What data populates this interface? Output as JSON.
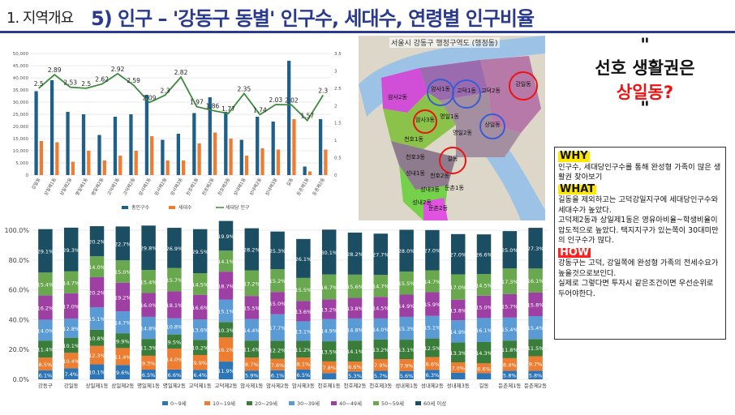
{
  "header": {
    "section": "1. 지역개요",
    "title": "5) 인구 – '강동구 동별' 인구수, 세대수, 연령별 인구비율"
  },
  "map": {
    "title": "서울시 강동구 행정구역도 (행정동)",
    "labels": [
      "강일동",
      "암사1동",
      "고덕1동",
      "고덕2동",
      "암사2동",
      "암사3동",
      "명일1동",
      "상일동",
      "명일2동",
      "천호1동",
      "천호3동",
      "길동",
      "성내1동",
      "천호2동",
      "성내3동",
      "성내2동",
      "둔촌1동",
      "둔촌2동"
    ]
  },
  "callout": {
    "quote_open": "\"",
    "line1": "선호 생활권은",
    "line2": "상일동?",
    "quote_close": "\""
  },
  "box": {
    "why_head": "WHY",
    "why_text": "인구수, 세대당인구수를 통해 완성형 가족이 많은 생활권 찾아보기",
    "what_head": "WHAT",
    "what_text1": "길동을 제외하고는 고덕강일지구에 세대당인구수와 세대수가 높았다.",
    "what_text2": "고덕제2동과 상일제1동은 영유아비율~학생비율이 압도적으로 높았다. 택지지구가 있는쪽이 30대미만의 인구수가 많다.",
    "how_head": "HOW",
    "how_text1": "강동구는 고덕, 강일쪽에 완성형 가족의 전세수요가 높을것으로보인다.",
    "how_text2": "실제로 그렇다면 투자시 같은조건이면 우선순위로 두어야한다."
  },
  "chart_data": [
    {
      "type": "bar",
      "categories": [
        "강일동",
        "상일제1동",
        "상일제2동",
        "명일제1동",
        "명일제2동",
        "고덕제1동",
        "고덕제2동",
        "암사제1동",
        "암사제2동",
        "암사제3동",
        "천호제1동",
        "천호제2동",
        "천호제3동",
        "성내제1동",
        "성내제2동",
        "성내제3동",
        "길동",
        "둔촌제1동",
        "둔촌제2동"
      ],
      "series": [
        {
          "name": "총인구수",
          "axis": "left",
          "color": "#1f5f8b",
          "values": [
            34500,
            39000,
            26000,
            25000,
            16500,
            24000,
            25000,
            33000,
            14500,
            17000,
            25500,
            32000,
            26000,
            14500,
            24000,
            22000,
            47000,
            3500,
            23000
          ]
        },
        {
          "name": "세대수",
          "axis": "left",
          "color": "#ed7d31",
          "values": [
            14000,
            13500,
            5500,
            10000,
            6000,
            8000,
            10000,
            16000,
            6000,
            6000,
            13000,
            17500,
            15000,
            8000,
            11000,
            10500,
            23000,
            1500,
            10500
          ]
        },
        {
          "name": "세대당 인구",
          "axis": "right",
          "color": "#3d8a3d",
          "values": [
            2.5,
            2.89,
            2.53,
            2.5,
            2.62,
            2.92,
            2.59,
            2.09,
            2.3,
            2.82,
            1.97,
            1.86,
            1.77,
            2.35,
            1.74,
            2.03,
            2.02,
            1.57,
            2.3
          ]
        }
      ],
      "labels_shown": [
        "2.5",
        "2.89",
        "2.53",
        "2.5",
        "2.62",
        "2.92",
        "2.59",
        "2.09",
        "2.3",
        "2.82",
        "1.97",
        "1.86",
        "1.77",
        "2.35",
        "1.74",
        "2.03",
        "2.02",
        "1.57",
        "2.3"
      ],
      "ylim_left": [
        0,
        50000
      ],
      "yticks_left": [
        "0",
        "5,000",
        "10,000",
        "15,000",
        "20,000",
        "25,000",
        "30,000",
        "35,000",
        "40,000",
        "45,000",
        "50,000"
      ],
      "ylim_right": [
        0,
        3.5
      ],
      "yticks_right": [
        "0",
        "0.5",
        "1",
        "1.5",
        "2",
        "2.5",
        "3",
        "3.5"
      ],
      "grid": true,
      "legend": "bottom"
    },
    {
      "type": "bar",
      "stacked": true,
      "percent": true,
      "categories": [
        "강동구",
        "강일동",
        "상일제1동",
        "상일제2동",
        "명일제1동",
        "명일제2동",
        "고덕제1동",
        "고덕제2동",
        "암사제1동",
        "암사제2동",
        "암사제3동",
        "천호제1동",
        "천호제2동",
        "천호제3동",
        "성내제1동",
        "성내제2동",
        "성내제3동",
        "길동",
        "둔촌제1동",
        "둔촌제2동"
      ],
      "series": [
        {
          "name": "0~9세",
          "color": "#2e75b6",
          "values": [
            6.1,
            7.4,
            10.1,
            9.6,
            6.5,
            6.6,
            6.4,
            11.9,
            5.9,
            6.1,
            6.5,
            4.2,
            5.3,
            5.7,
            5.6,
            6.3,
            4.4,
            4.1,
            5.8,
            5.8
          ]
        },
        {
          "name": "10~19세",
          "color": "#ed7d31",
          "values": [
            8.5,
            10.4,
            12.3,
            11.4,
            9.3,
            14.0,
            9.9,
            16.2,
            8.7,
            7.6,
            8.1,
            7.8,
            6.6,
            7.9,
            7.9,
            8.6,
            7.0,
            6.6,
            8.4,
            9.7
          ]
        },
        {
          "name": "20~29세",
          "color": "#3a7d3a",
          "values": [
            11.4,
            10.1,
            10.8,
            9.9,
            11.3,
            9.5,
            10.2,
            10.3,
            11.4,
            12.2,
            11.2,
            13.5,
            14.1,
            13.2,
            13.1,
            12.5,
            13.3,
            14.3,
            11.8,
            11.5
          ]
        },
        {
          "name": "30~39세",
          "color": "#5b9bd5",
          "values": [
            14.0,
            12.8,
            15.1,
            14.7,
            14.8,
            10.8,
            13.6,
            15.1,
            14.4,
            17.7,
            13.1,
            14.9,
            14.8,
            14.0,
            15.3,
            15.1,
            14.9,
            16.1,
            15.4,
            15.4
          ]
        },
        {
          "name": "40~49세",
          "color": "#9e3fa3",
          "values": [
            16.2,
            17.0,
            20.2,
            19.2,
            16.0,
            18.1,
            16.6,
            18.7,
            15.5,
            15.0,
            13.6,
            13.2,
            13.8,
            14.5,
            14.9,
            15.9,
            13.8,
            15.0,
            15.7,
            15.8
          ]
        },
        {
          "name": "50~59세",
          "color": "#6aa84f",
          "values": [
            15.4,
            14.7,
            14.0,
            15.0,
            15.4,
            15.7,
            14.5,
            14.1,
            17.2,
            15.2,
            15.5,
            16.7,
            15.6,
            14.7,
            15.5,
            14.7,
            17.0,
            14.5,
            17.3,
            16.1
          ]
        },
        {
          "name": "60세 이상",
          "color": "#1c4e63",
          "values": [
            29.1,
            29.3,
            20.2,
            22.7,
            29.8,
            26.9,
            29.5,
            19.9,
            28.2,
            25.3,
            26.1,
            30.1,
            28.2,
            27.7,
            28.0,
            27.0,
            27.0,
            26.6,
            25.0,
            27.3
          ]
        }
      ],
      "top_labels": [
        "29.1%",
        "29.3%",
        "20.2%",
        "22.7%",
        "29.8%",
        "26.9%",
        "29.5%",
        "19.9%",
        "28.2%",
        "25.3%",
        "26.1%",
        "30.1%",
        "28.2%",
        "27.7%",
        "28.0%",
        "27.0%",
        "27.0%",
        "26.6%",
        "25.0%",
        "27.3%"
      ],
      "ylim": [
        0,
        100
      ],
      "yticks": [
        "0.0%",
        "20.0%",
        "40.0%",
        "60.0%",
        "80.0%",
        "100.0%"
      ],
      "legend": "bottom",
      "grid": true
    }
  ]
}
